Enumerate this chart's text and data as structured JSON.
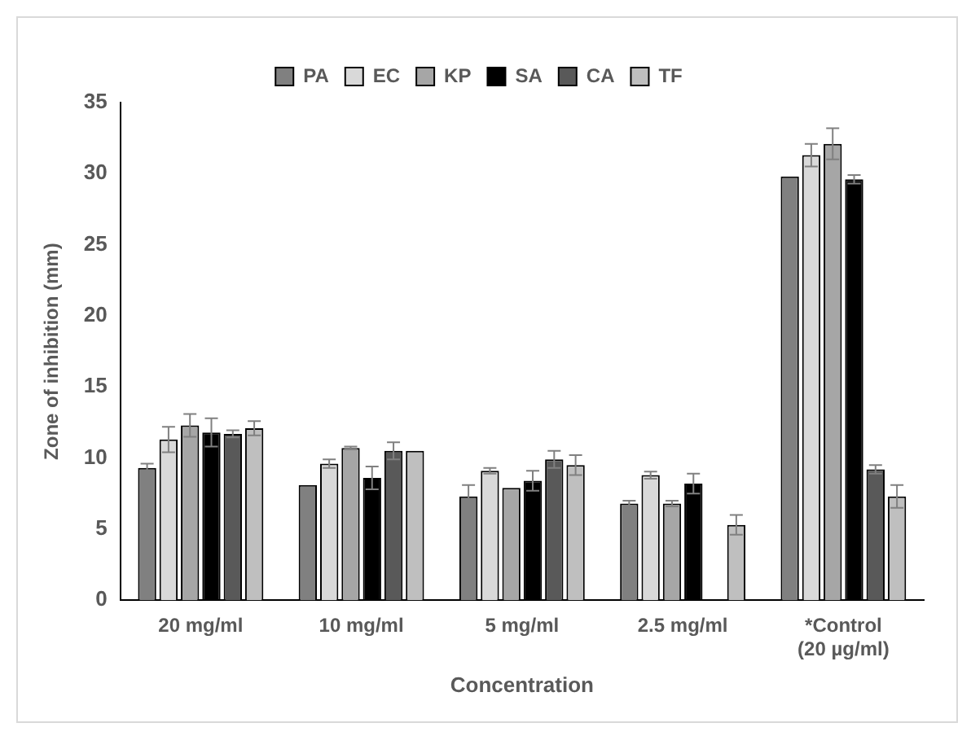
{
  "chart_data": {
    "type": "bar",
    "xlabel": "Concentration",
    "ylabel": "Zone of inhibition (mm)",
    "categories": [
      "20 mg/ml",
      "10 mg/ml",
      "5 mg/ml",
      "2.5 mg/ml",
      "*Control (20 µg/ml)"
    ],
    "series": [
      {
        "name": "PA",
        "color": "#808080",
        "values": [
          9.3,
          8.1,
          7.3,
          6.8,
          29.8
        ],
        "errors": [
          0.3,
          null,
          0.8,
          0.2,
          null
        ]
      },
      {
        "name": "EC",
        "color": "#d9d9d9",
        "values": [
          11.3,
          9.6,
          9.1,
          8.8,
          31.3
        ],
        "errors": [
          0.9,
          0.3,
          0.2,
          0.25,
          0.8
        ]
      },
      {
        "name": "KP",
        "color": "#a6a6a6",
        "values": [
          12.3,
          10.7,
          7.9,
          6.8,
          32.1
        ],
        "errors": [
          0.8,
          0.1,
          null,
          0.2,
          1.1
        ]
      },
      {
        "name": "SA",
        "color": "#000000",
        "values": [
          11.8,
          8.6,
          8.4,
          8.2,
          29.6
        ],
        "errors": [
          1.0,
          0.8,
          0.7,
          0.7,
          0.3
        ]
      },
      {
        "name": "CA",
        "color": "#595959",
        "values": [
          11.7,
          10.5,
          9.9,
          null,
          9.2
        ],
        "errors": [
          0.25,
          0.6,
          0.6,
          null,
          0.3
        ]
      },
      {
        "name": "TF",
        "color": "#bfbfbf",
        "values": [
          12.1,
          10.5,
          9.5,
          5.3,
          7.3
        ],
        "errors": [
          0.5,
          null,
          0.7,
          0.7,
          0.8
        ]
      }
    ],
    "ylim": [
      0,
      35
    ],
    "yticks": [
      0,
      5,
      10,
      15,
      20,
      25,
      30,
      35
    ],
    "grid": false,
    "legend": "top"
  }
}
